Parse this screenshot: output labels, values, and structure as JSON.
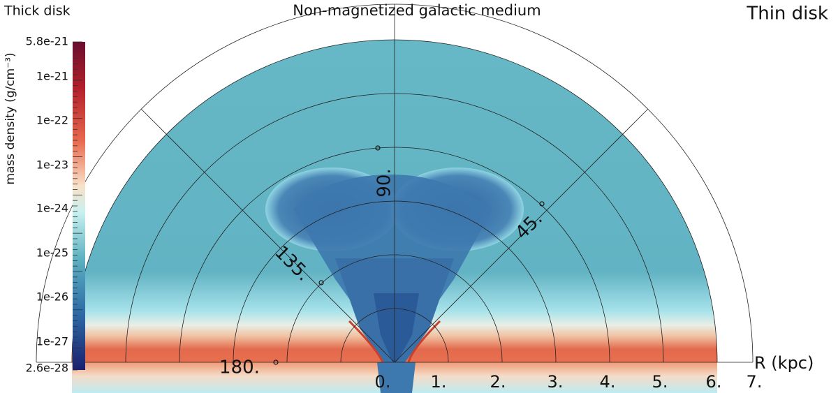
{
  "header": {
    "left": "Thick disk",
    "center": "Non-magnetized galactic medium",
    "right": "Thin disk"
  },
  "colorbar": {
    "title": "mass density  (g/cm⁻³)",
    "labels": [
      "5.8e-21",
      "1e-21",
      "1e-22",
      "1e-23",
      "1e-24",
      "1e-25",
      "1e-26",
      "1e-27",
      "2.6e-28"
    ]
  },
  "radial_axis": {
    "title": "R (kpc)",
    "labels": [
      "0.",
      "1.",
      "2.",
      "3.",
      "4.",
      "5.",
      "6.",
      "7."
    ]
  },
  "angle_labels": [
    "180.",
    "135.",
    "90.",
    "45."
  ]
}
